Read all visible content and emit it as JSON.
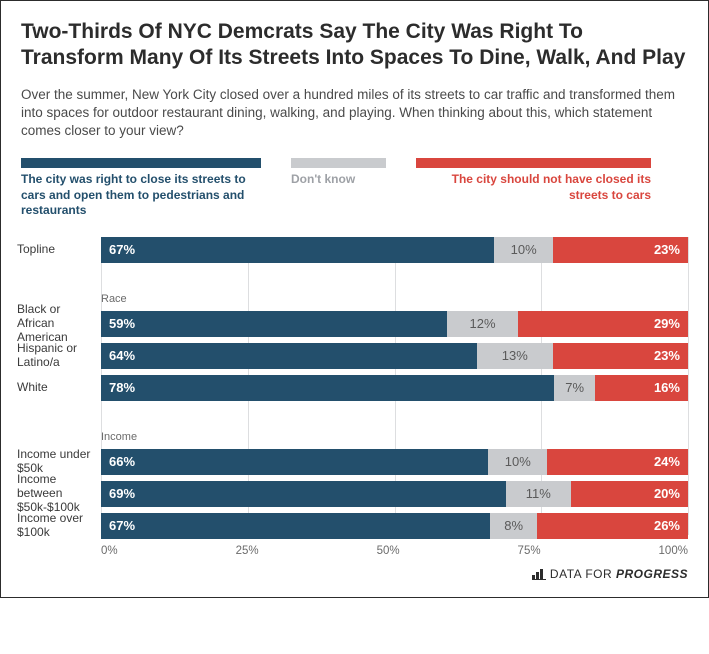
{
  "title": "Two-Thirds Of NYC Demcrats Say The City Was Right To Transform Many Of Its Streets Into Spaces To Dine, Walk, And Play",
  "subtitle": "Over the summer, New York City closed over a hundred miles of its streets to car traffic and transformed them into spaces for outdoor restaurant dining, walking, and playing.\nWhen thinking about this, which statement comes closer to your view?",
  "legend": {
    "approve": "The city was right to close its streets to cars and open them to pedestrians and restaurants",
    "dk": "Don't know",
    "disapprove": "The city should not have closed its streets to cars"
  },
  "colors": {
    "approve": "#234f6c",
    "dk": "#c9cbce",
    "disapprove": "#d9463e",
    "grid": "#9ea1a6"
  },
  "groups": [
    {
      "label": "",
      "rows": [
        {
          "label": "Topline",
          "approve": 67,
          "dk": 10,
          "disapprove": 23
        }
      ]
    },
    {
      "label": "Race",
      "rows": [
        {
          "label": "Black or African American",
          "approve": 59,
          "dk": 12,
          "disapprove": 29
        },
        {
          "label": "Hispanic or Latino/a",
          "approve": 64,
          "dk": 13,
          "disapprove": 23
        },
        {
          "label": "White",
          "approve": 78,
          "dk": 7,
          "disapprove": 16
        }
      ]
    },
    {
      "label": "Income",
      "rows": [
        {
          "label": "Income under $50k",
          "approve": 66,
          "dk": 10,
          "disapprove": 24
        },
        {
          "label": "Income between $50k-$100k",
          "approve": 69,
          "dk": 11,
          "disapprove": 20
        },
        {
          "label": "Income over $100k",
          "approve": 67,
          "dk": 8,
          "disapprove": 26
        }
      ]
    }
  ],
  "xaxis": {
    "ticks": [
      0,
      25,
      50,
      75,
      100
    ],
    "labels": [
      "0%",
      "25%",
      "50%",
      "75%",
      "100%"
    ]
  },
  "footer": {
    "prefix": "DATA FOR ",
    "brand": "PROGRESS"
  }
}
